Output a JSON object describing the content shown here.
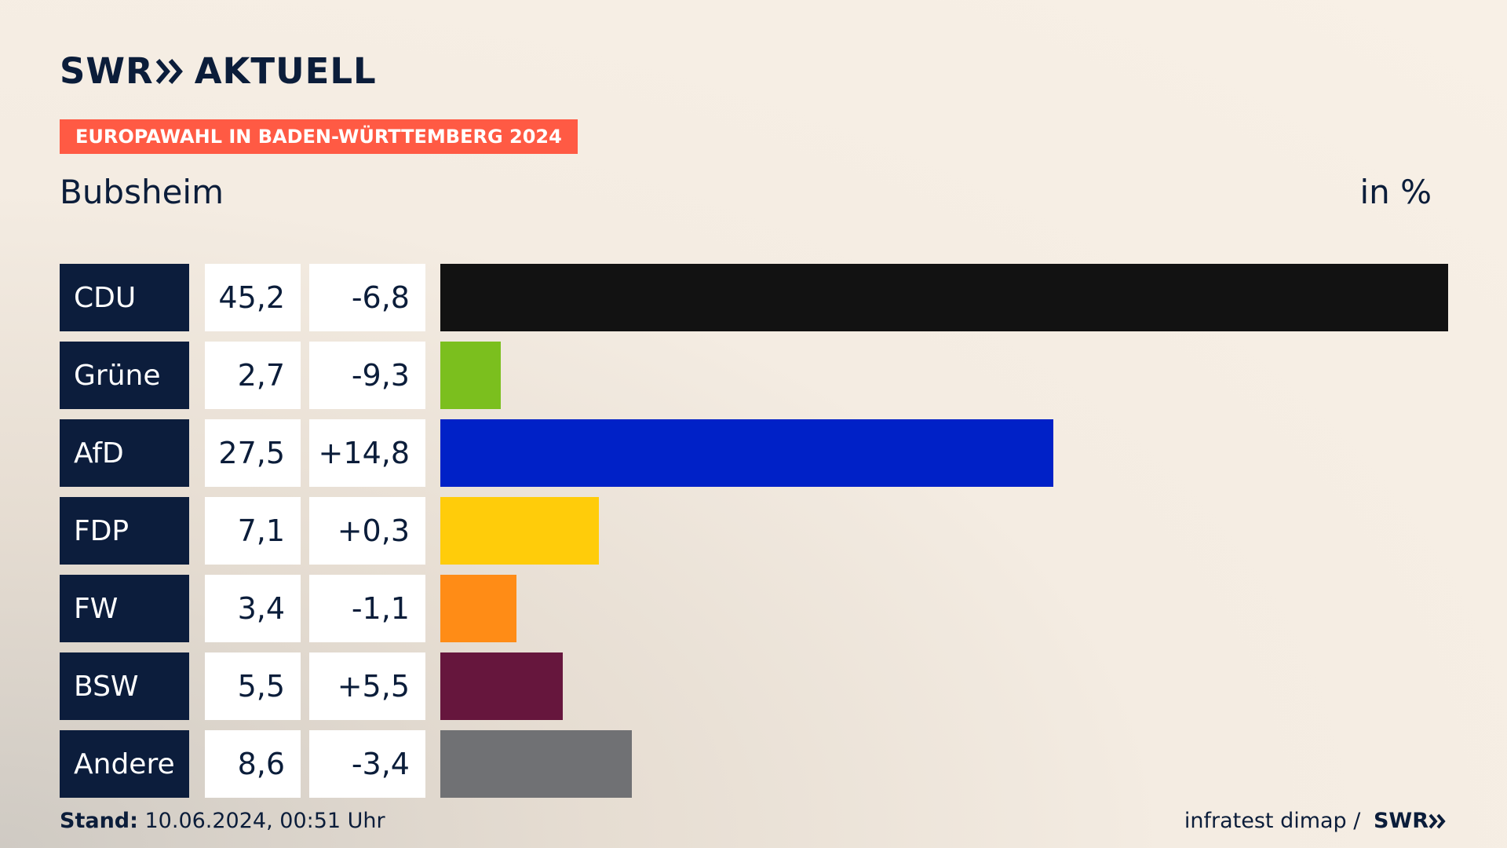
{
  "header": {
    "brand_swr": "SWR",
    "brand_aktuell": "AKTUELL",
    "banner": "EUROPAWAHL IN BADEN-WÜRTTEMBERG 2024",
    "place": "Bubsheim",
    "unit": "in %"
  },
  "footer": {
    "stand_label": "Stand:",
    "stand_value": " 10.06.2024, 00:51 Uhr",
    "source": "infratest dimap / ",
    "source_brand": "SWR"
  },
  "chart_data": {
    "type": "bar",
    "orientation": "horizontal",
    "categories": [
      "CDU",
      "Grüne",
      "AfD",
      "FDP",
      "FW",
      "BSW",
      "Andere"
    ],
    "values": [
      45.2,
      2.7,
      27.5,
      7.1,
      3.4,
      5.5,
      8.6
    ],
    "value_labels": [
      "45,2",
      "2,7",
      "27,5",
      "7,1",
      "3,4",
      "5,5",
      "8,6"
    ],
    "diff_labels": [
      "-6,8",
      "-9,3",
      "+14,8",
      "+0,3",
      "-1,1",
      "+5,5",
      "-3,4"
    ],
    "colors": [
      "#121212",
      "#7bbf1e",
      "#0021c7",
      "#ffcc0a",
      "#ff8c16",
      "#66163d",
      "#707174"
    ],
    "xlim": [
      0,
      45.2
    ]
  }
}
